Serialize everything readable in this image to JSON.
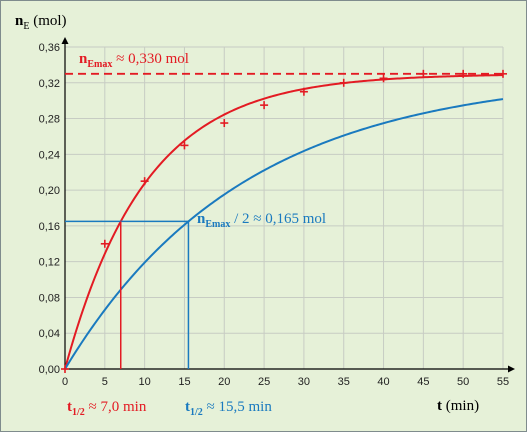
{
  "chart_data": {
    "type": "line",
    "y_axis_label": {
      "bold": "n",
      "sub": "E",
      "rest": " (mol)"
    },
    "x_axis_label": {
      "bold": "t",
      "rest": " (min)"
    },
    "xlim": [
      0,
      55
    ],
    "ylim": [
      0,
      0.36
    ],
    "x_ticks": [
      0,
      5,
      10,
      15,
      20,
      25,
      30,
      35,
      40,
      45,
      50,
      55
    ],
    "y_ticks": [
      0,
      0.04,
      0.08,
      0.12,
      0.16,
      0.2,
      0.24,
      0.28,
      0.32,
      0.36
    ],
    "x_tick_labels": [
      "0",
      "5",
      "10",
      "15",
      "20",
      "25",
      "30",
      "35",
      "40",
      "45",
      "50",
      "55"
    ],
    "y_tick_labels": [
      "0,00",
      "0,04",
      "0,08",
      "0,12",
      "0,16",
      "0,20",
      "0,24",
      "0,28",
      "0,32",
      "0,36"
    ],
    "grid": true,
    "colors": {
      "red": "#e31b23",
      "blue": "#1a7abf",
      "background": "#e6f1d8",
      "grid": "#c7ccc3"
    },
    "measured_points": {
      "marker": "+",
      "x": [
        0,
        5,
        10,
        15,
        20,
        25,
        30,
        35,
        40,
        45,
        50,
        55
      ],
      "y": [
        0,
        0.14,
        0.21,
        0.25,
        0.275,
        0.295,
        0.31,
        0.32,
        0.325,
        0.33,
        0.33,
        0.33
      ]
    },
    "series": [
      {
        "color": "red",
        "n_max": 0.33,
        "t_half": 7.0
      },
      {
        "color": "blue",
        "n_max": 0.33,
        "t_half": 15.5
      }
    ],
    "asymptote_y": 0.33,
    "half_level_y": 0.165,
    "annotations": {
      "nmax": {
        "bold": "n",
        "sub": "Emax",
        "rest": " ≈ 0,330 mol"
      },
      "nhalf": {
        "bold": "n",
        "sub": "Emax",
        "rest": "  / 2 ≈ 0,165 mol"
      },
      "t_half_red": {
        "bold": "t",
        "sub": "1/2",
        "rest": " ≈ 7,0 min",
        "x": 7.0
      },
      "t_half_blue": {
        "bold": "t",
        "sub": "1/2",
        "rest": " ≈ 15,5 min",
        "x": 15.5
      }
    }
  }
}
